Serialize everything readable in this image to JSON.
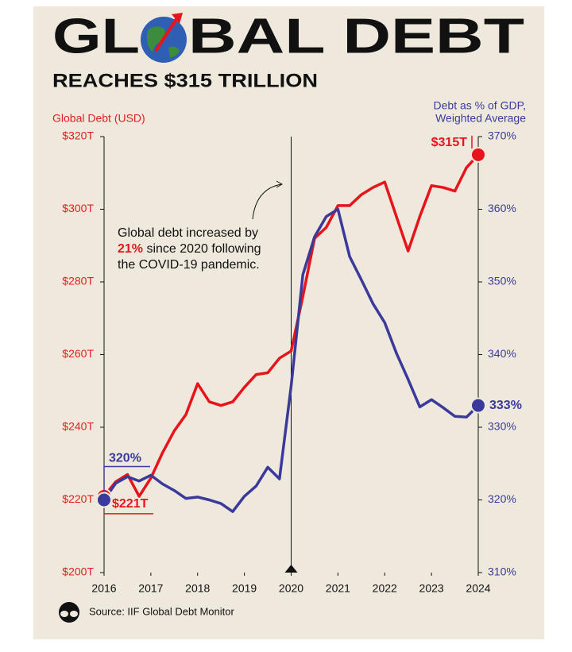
{
  "chart_data": {
    "type": "line",
    "title": [
      "GL",
      "BAL DEBT"
    ],
    "subtitle": "REACHES $315 TRILLION",
    "ylabel": "Global Debt (USD)",
    "y2label": [
      "Debt as % of GDP,",
      "Weighted Average"
    ],
    "annotation": [
      "Global debt increased by",
      "21%",
      " since 2020 following",
      "the COVID-19 pandemic."
    ],
    "source": "Source: IIF Global Debt Monitor",
    "x": [
      2016,
      2016.25,
      2016.5,
      2016.75,
      2017,
      2017.25,
      2017.5,
      2017.75,
      2018,
      2018.25,
      2018.5,
      2018.75,
      2019,
      2019.25,
      2019.5,
      2019.75,
      2020,
      2020.25,
      2020.5,
      2020.75,
      2021,
      2021.25,
      2021.5,
      2021.75,
      2022,
      2022.25,
      2022.5,
      2022.75,
      2023,
      2023.25,
      2023.5,
      2023.75,
      2024
    ],
    "series": [
      {
        "color": "#e8141b",
        "axis": "y",
        "values": [
          221,
          225,
          227,
          221,
          226,
          233,
          239,
          243.5,
          252,
          247,
          246,
          247,
          251,
          254.5,
          255,
          259,
          261,
          276,
          292,
          295,
          301,
          301,
          304,
          306,
          307.5,
          298,
          288.5,
          298,
          306.5,
          306,
          305,
          311.5,
          315
        ],
        "value_labels": [
          "$221T",
          null,
          null,
          null,
          null,
          null,
          null,
          null,
          null,
          null,
          null,
          null,
          null,
          null,
          null,
          null,
          null,
          null,
          null,
          null,
          null,
          null,
          null,
          null,
          null,
          null,
          null,
          null,
          null,
          null,
          null,
          null,
          "$315T"
        ]
      },
      {
        "color": "#3b3a9c",
        "axis": "y2",
        "values": [
          320,
          322.3,
          323.2,
          322.6,
          323.4,
          322.2,
          321.3,
          320.2,
          320.4,
          320,
          319.5,
          318.4,
          320.5,
          321.9,
          324.5,
          322.9,
          335.7,
          351,
          356.2,
          359,
          360,
          353.5,
          350.3,
          347,
          344.4,
          340.2,
          336.6,
          332.8,
          333.8,
          332.7,
          331.5,
          331.4,
          333
        ],
        "value_labels": [
          "320%",
          null,
          null,
          null,
          null,
          null,
          null,
          null,
          null,
          null,
          null,
          null,
          null,
          null,
          null,
          null,
          null,
          null,
          null,
          null,
          null,
          null,
          null,
          null,
          null,
          null,
          null,
          null,
          null,
          null,
          null,
          null,
          "333%"
        ]
      }
    ],
    "xlim": [
      2016,
      2024
    ],
    "xticks": [
      2016,
      2017,
      2018,
      2019,
      2020,
      2021,
      2022,
      2023,
      2024
    ],
    "ylim": [
      200,
      320
    ],
    "yticks": [
      {
        "value": 200,
        "label": "$200T"
      },
      {
        "value": 220,
        "label": "$220T"
      },
      {
        "value": 240,
        "label": "$240T"
      },
      {
        "value": 260,
        "label": "$260T"
      },
      {
        "value": 280,
        "label": "$280T"
      },
      {
        "value": 300,
        "label": "$300T"
      },
      {
        "value": 320,
        "label": "$320T"
      }
    ],
    "y2lim": [
      310,
      370
    ],
    "y2ticks": [
      {
        "value": 310,
        "label": "310%"
      },
      {
        "value": 320,
        "label": "320%"
      },
      {
        "value": 330,
        "label": "330%"
      },
      {
        "value": 340,
        "label": "340%"
      },
      {
        "value": 350,
        "label": "350%"
      },
      {
        "value": 360,
        "label": "360%"
      },
      {
        "value": 370,
        "label": "370%"
      }
    ],
    "marker_x": 2020
  }
}
